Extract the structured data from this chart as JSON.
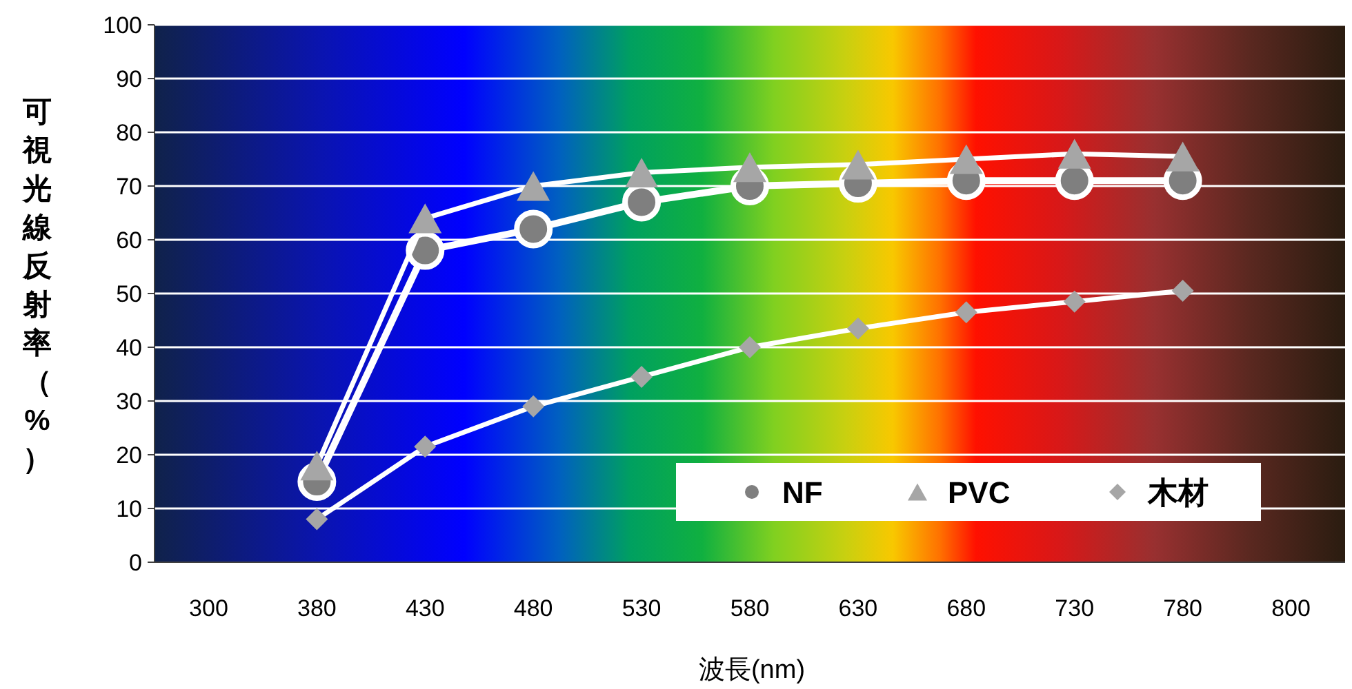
{
  "chart_data": {
    "type": "line",
    "xlabel": "波長(nm)",
    "ylabel": "可視光線反射率（%）",
    "categories": [
      "300",
      "380",
      "430",
      "480",
      "530",
      "580",
      "630",
      "680",
      "730",
      "780",
      "800"
    ],
    "ylim": [
      0,
      100
    ],
    "yticks": [
      0,
      10,
      20,
      30,
      40,
      50,
      60,
      70,
      80,
      90,
      100
    ],
    "grid": "y",
    "legend": "bottom right",
    "series": [
      {
        "name": "NF",
        "color": "#7f7f7f",
        "marker": "circle",
        "values": [
          null,
          15,
          58,
          62,
          67,
          70,
          70.5,
          71,
          71,
          71,
          null
        ]
      },
      {
        "name": "PVC",
        "color": "#a6a6a6",
        "marker": "triangle",
        "values": [
          null,
          18,
          64,
          70,
          72.5,
          73.5,
          74,
          75,
          76,
          75.5,
          null
        ]
      },
      {
        "name": "木材",
        "color": "#a6a6a6",
        "marker": "diamond",
        "values": [
          null,
          8,
          21.5,
          29,
          34.5,
          40,
          43.5,
          46.5,
          48.5,
          50.5,
          null
        ]
      }
    ]
  }
}
